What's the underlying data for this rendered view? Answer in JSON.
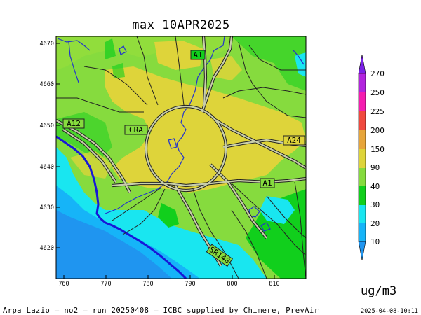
{
  "title": "max 10APR2025",
  "footer_left": "Arpa Lazio – no2 – run 20250408 – ICBC supplied by Chimere, PrevAir",
  "footer_right": "2025-04-08-10:11",
  "unit": "ug/m3",
  "map": {
    "x_ticks": [
      "760",
      "770",
      "780",
      "790",
      "800",
      "810"
    ],
    "y_ticks": [
      "4670",
      "4660",
      "4650",
      "4640",
      "4630",
      "4620"
    ],
    "road_labels": [
      "A1",
      "A12",
      "GRA",
      "A24",
      "A1",
      "SR148"
    ]
  },
  "colorbar": {
    "levels": [
      "10",
      "20",
      "30",
      "40",
      "90",
      "150",
      "200",
      "225",
      "250",
      "270"
    ],
    "colors": {
      "lt10": "#1f95f0",
      "10_20": "#16b4f8",
      "20_30": "#19e6f0",
      "30_40": "#11cf1c",
      "40_90": "#86db3e",
      "90_150": "#ded43a",
      "150_200": "#e7a53b",
      "200_225": "#f0493f",
      "225_250": "#f51cb0",
      "250_270": "#b224de",
      "gt270": "#7b22e8"
    }
  },
  "colors": {
    "coast": "#1717d8",
    "rivers": "#2233cc",
    "roads_fill": "#c8ceaa",
    "roads_outline": "#222222",
    "sea_dark": "#1a8cec",
    "urban": "#dfd23c"
  }
}
